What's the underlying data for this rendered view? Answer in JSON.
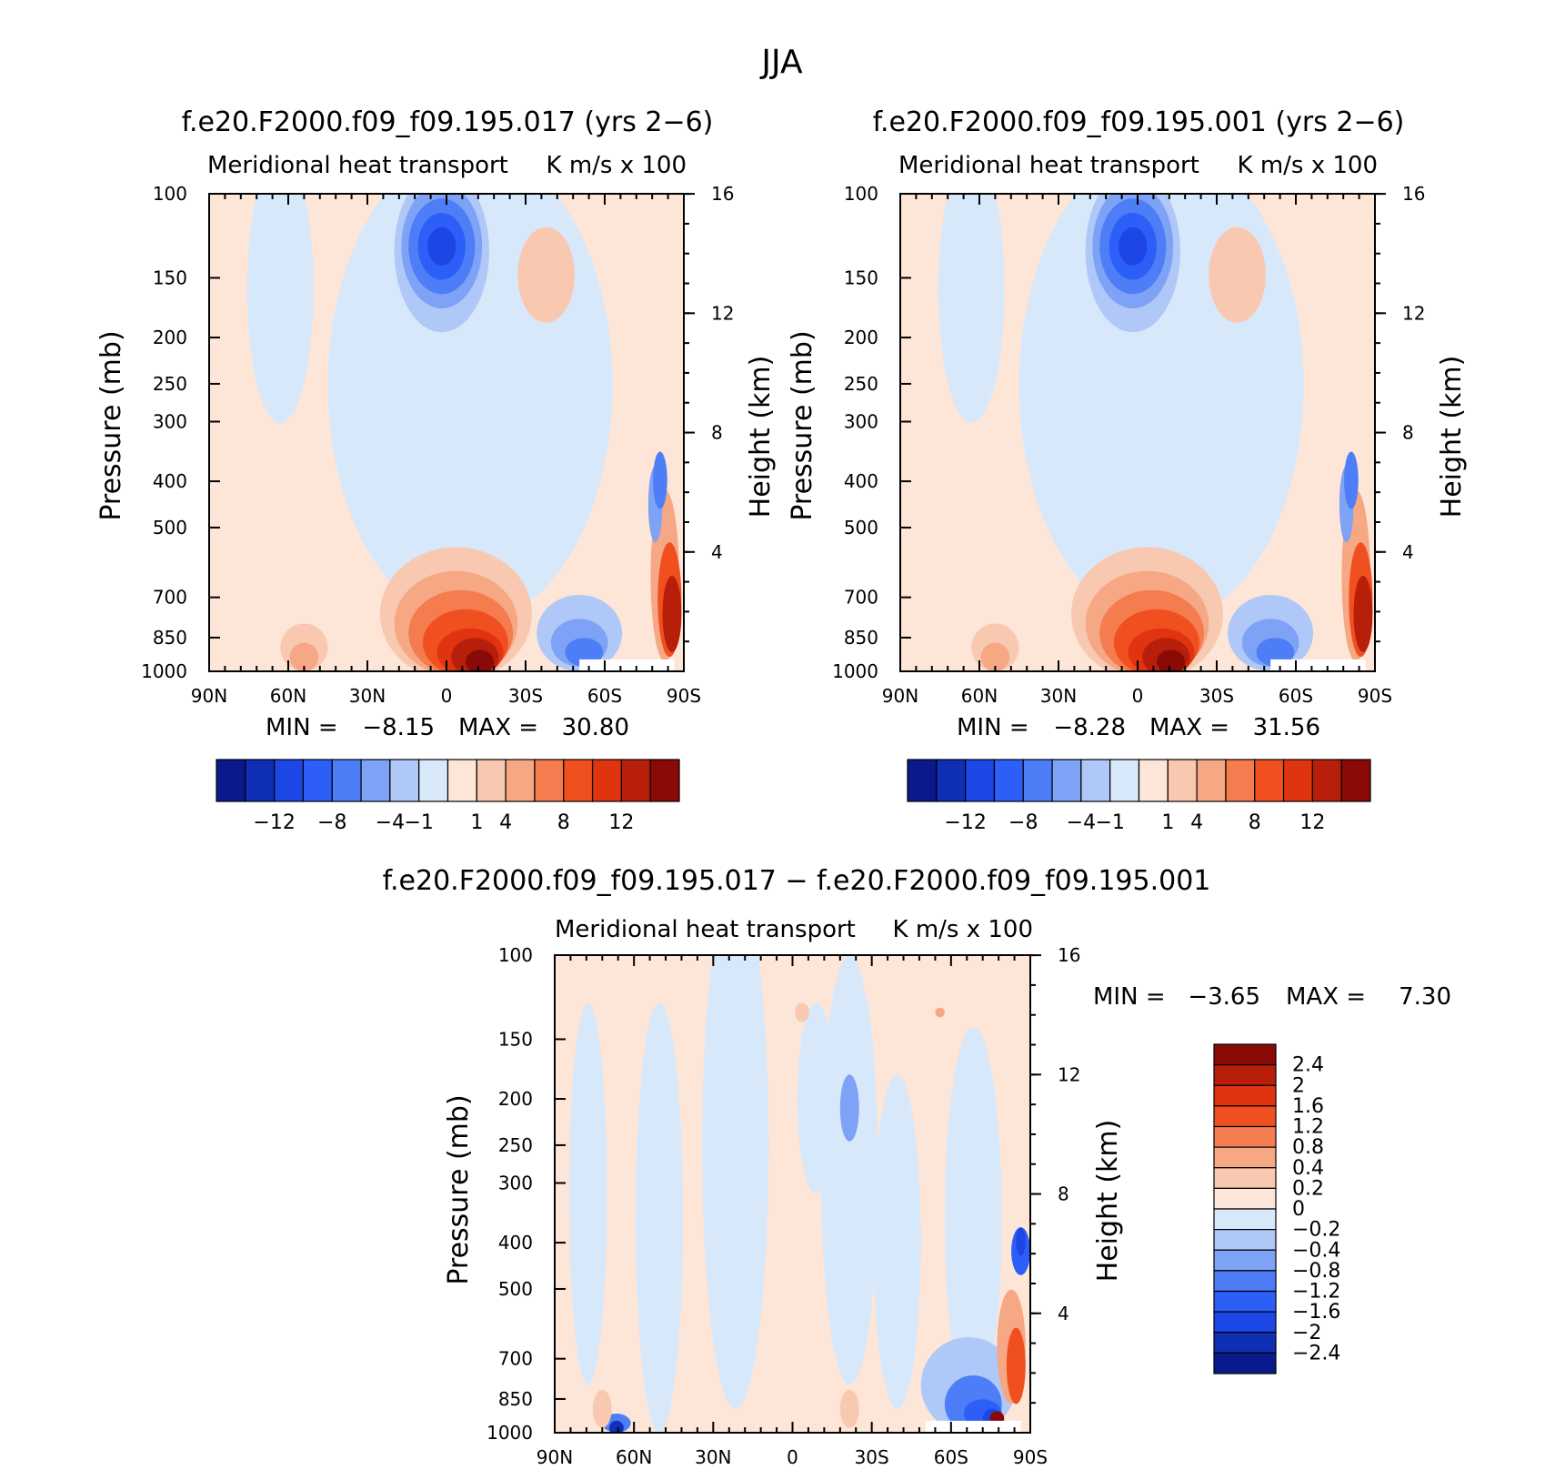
{
  "figure": {
    "title": "JJA"
  },
  "colors": {
    "main_levels": [
      "-12",
      "-8",
      "-4",
      "-1",
      "1",
      "4",
      "8",
      "12"
    ],
    "main_palette": [
      "#0a1a8c",
      "#0f2fb5",
      "#1c46e6",
      "#2d5ef7",
      "#4d7df7",
      "#7ea2f5",
      "#afc8f7",
      "#d8e8fb",
      "#fde6d7",
      "#f9c8b0",
      "#f6a784",
      "#f47c4f",
      "#f05020",
      "#e03410",
      "#b81f0a",
      "#8a0a08"
    ],
    "diff_palette": [
      "#0a1a8c",
      "#0f2fb5",
      "#1c46e6",
      "#2d5ef7",
      "#4d7df7",
      "#7ea2f5",
      "#afc8f7",
      "#d8e8fb",
      "#fde6d7",
      "#f9c8b0",
      "#f6a784",
      "#f47c4f",
      "#f05020",
      "#e03410",
      "#b81f0a",
      "#8a0a08"
    ]
  },
  "chart_data": [
    {
      "type": "heatmap",
      "title": "f.e20.F2000.f09_f09.195.017 (yrs 2−6)",
      "subtitle_left": "Meridional heat transport",
      "subtitle_right": "K m/s x 100",
      "ylabel": "Pressure (mb)",
      "ylabel_right": "Height (km)",
      "x_ticks": [
        "90N",
        "60N",
        "30N",
        "0",
        "30S",
        "60S",
        "90S"
      ],
      "y_ticks": [
        "100",
        "150",
        "200",
        "250",
        "300",
        "400",
        "500",
        "700",
        "850",
        "1000"
      ],
      "y_right_ticks": [
        "16",
        "12",
        "8",
        "4"
      ],
      "min_label": "MIN =",
      "min_value": "−8.15",
      "max_label": "MAX =",
      "max_value": "30.80",
      "colorbar_labels": [
        "−12",
        "−8",
        "−4",
        "−1",
        "1",
        "4",
        "8",
        "12"
      ]
    },
    {
      "type": "heatmap",
      "title": "f.e20.F2000.f09_f09.195.001 (yrs 2−6)",
      "subtitle_left": "Meridional heat transport",
      "subtitle_right": "K m/s x 100",
      "ylabel": "Pressure (mb)",
      "ylabel_right": "Height (km)",
      "x_ticks": [
        "90N",
        "60N",
        "30N",
        "0",
        "30S",
        "60S",
        "90S"
      ],
      "y_ticks": [
        "100",
        "150",
        "200",
        "250",
        "300",
        "400",
        "500",
        "700",
        "850",
        "1000"
      ],
      "y_right_ticks": [
        "16",
        "12",
        "8",
        "4"
      ],
      "min_label": "MIN =",
      "min_value": "−8.28",
      "max_label": "MAX =",
      "max_value": "31.56",
      "colorbar_labels": [
        "−12",
        "−8",
        "−4",
        "−1",
        "1",
        "4",
        "8",
        "12"
      ]
    },
    {
      "type": "heatmap",
      "title": "f.e20.F2000.f09_f09.195.017 − f.e20.F2000.f09_f09.195.001",
      "subtitle_left": "Meridional heat transport",
      "subtitle_right": "K m/s x 100",
      "ylabel": "Pressure (mb)",
      "ylabel_right": "Height (km)",
      "x_ticks": [
        "90N",
        "60N",
        "30N",
        "0",
        "30S",
        "60S",
        "90S"
      ],
      "y_ticks": [
        "100",
        "150",
        "200",
        "250",
        "300",
        "400",
        "500",
        "700",
        "850",
        "1000"
      ],
      "y_right_ticks": [
        "16",
        "12",
        "8",
        "4"
      ],
      "min_label": "MIN =",
      "min_value": "−3.65",
      "max_label": "MAX =",
      "max_value": "7.30",
      "colorbar_labels": [
        "2.4",
        "2",
        "1.6",
        "1.2",
        "0.8",
        "0.4",
        "0.2",
        "0",
        "−0.2",
        "−0.4",
        "−0.8",
        "−1.2",
        "−1.6",
        "−2",
        "−2.4"
      ]
    }
  ]
}
